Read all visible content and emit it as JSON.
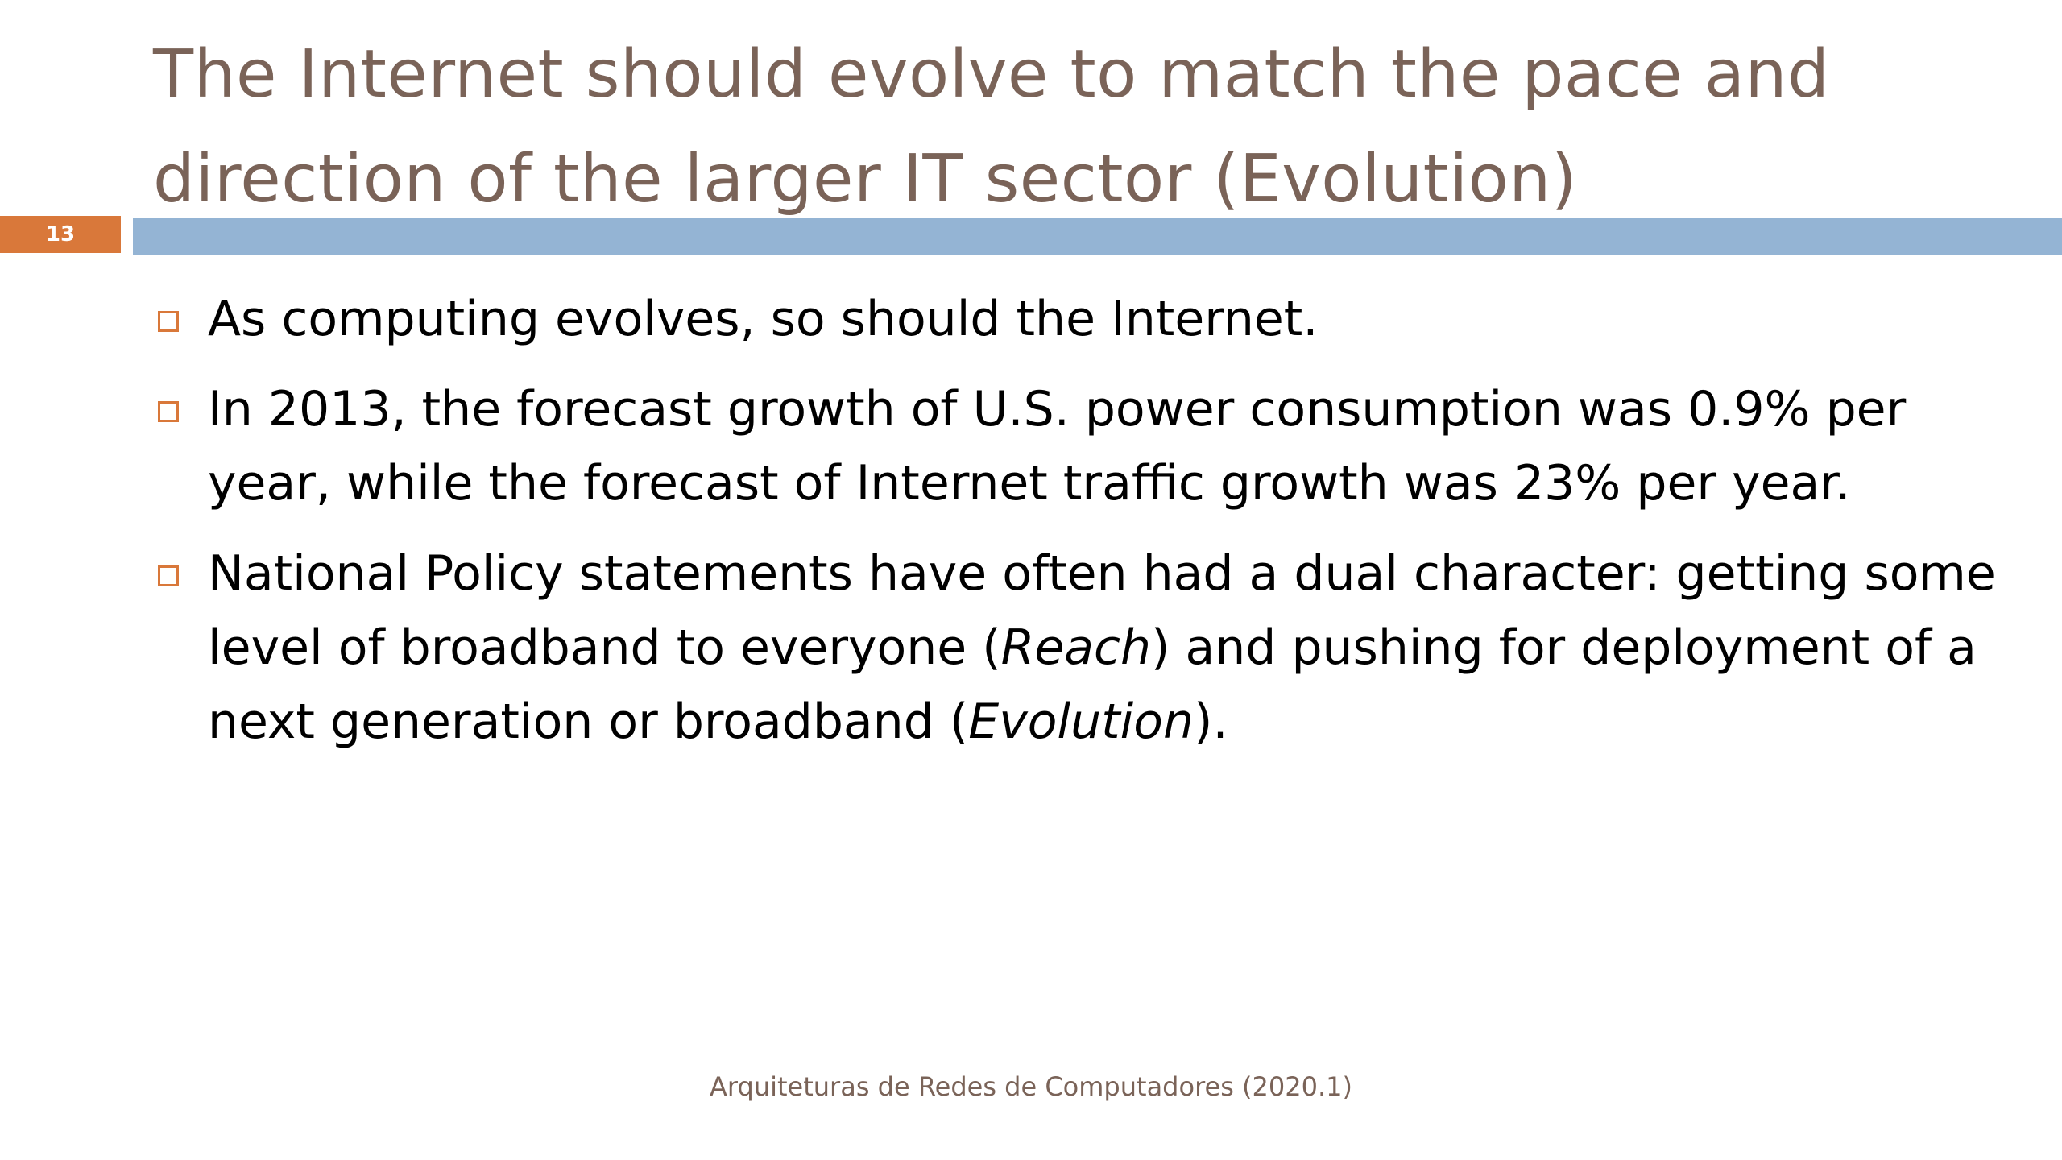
{
  "slide": {
    "number": "13",
    "title": "The Internet should evolve to match the pace and direction of the larger IT sector (Evolution)",
    "bullets": {
      "b1": "As computing evolves, so should the Internet.",
      "b2": "In 2013, the forecast growth of U.S. power consumption was 0.9% per year, while the forecast of Internet traffic growth was 23% per year.",
      "b3": {
        "part1": "National Policy statements have often had a dual character: getting some level of broadband to everyone (",
        "reach": "Reach",
        "part2": ") and pushing for deployment of a next generation or broadband (",
        "evolution": "Evolution",
        "part3": ")."
      }
    },
    "footer": "Arquiteturas de Redes de Computadores  (2020.1)"
  },
  "colors": {
    "accent_orange": "#d9783a",
    "title_bar_blue": "#94b4d4",
    "title_text": "#7a6358"
  },
  "icons": {
    "bullet": "hollow-square-bullet-icon"
  }
}
